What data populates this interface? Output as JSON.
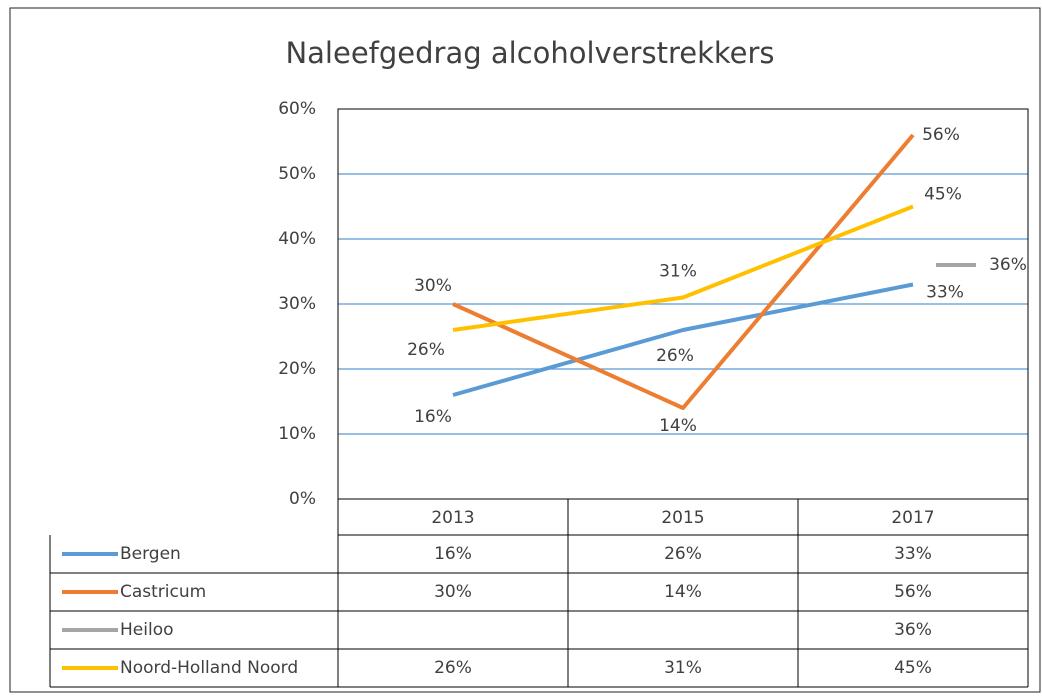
{
  "chart_data": {
    "type": "line",
    "title": "Naleefgedrag alcoholverstrekkers",
    "categories": [
      "2013",
      "2015",
      "2017"
    ],
    "series": [
      {
        "name": "Bergen",
        "color": "#5b9bd5",
        "values": [
          16,
          26,
          33
        ],
        "value_labels": [
          "16%",
          "26%",
          "33%"
        ]
      },
      {
        "name": "Castricum",
        "color": "#ed7d31",
        "values": [
          30,
          14,
          56
        ],
        "value_labels": [
          "30%",
          "14%",
          "56%"
        ]
      },
      {
        "name": "Heiloo",
        "color": "#a5a5a5",
        "values": [
          null,
          null,
          36
        ],
        "value_labels": [
          null,
          null,
          "36%"
        ]
      },
      {
        "name": "Noord-Holland Noord",
        "color": "#ffc000",
        "values": [
          26,
          31,
          45
        ],
        "value_labels": [
          "26%",
          "31%",
          "45%"
        ]
      }
    ],
    "ylim": [
      0,
      60
    ],
    "yticks": [
      {
        "value": 0,
        "label": "0%"
      },
      {
        "value": 10,
        "label": "10%"
      },
      {
        "value": 20,
        "label": "20%"
      },
      {
        "value": 30,
        "label": "30%"
      },
      {
        "value": 40,
        "label": "40%"
      },
      {
        "value": 50,
        "label": "50%"
      },
      {
        "value": 60,
        "label": "60%"
      }
    ],
    "grid": true
  }
}
